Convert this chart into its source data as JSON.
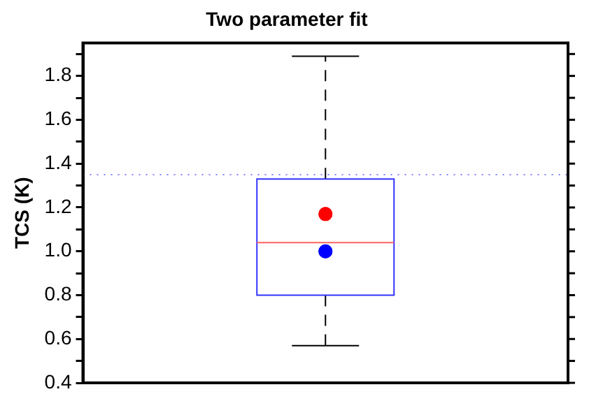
{
  "chart_data": {
    "type": "box",
    "title": "Two parameter fit",
    "ylabel": "TCS (K)",
    "categories": [
      null
    ],
    "series": [
      {
        "type": "box",
        "color": "#3333ff",
        "boxes": [
          {
            "low": 0.57,
            "q1": 0.8,
            "median": 1.04,
            "q3": 1.33,
            "high": 1.89
          }
        ]
      },
      {
        "type": "scatter",
        "color": "#ff0000",
        "values": [
          1.17
        ]
      },
      {
        "type": "scatter",
        "color": "#0000ff",
        "values": [
          1.0
        ]
      }
    ],
    "ylim": [
      0.4,
      1.95
    ],
    "yticks": [
      0.4,
      {
        "value": 0.5,
        "label": null
      },
      0.6,
      {
        "value": 0.7,
        "label": null
      },
      0.8,
      {
        "value": 0.9,
        "label": null
      },
      {
        "value": 1.0,
        "label": "1.0"
      },
      {
        "value": 1.1,
        "label": null
      },
      1.2,
      {
        "value": 1.3,
        "label": null
      },
      1.4,
      {
        "value": 1.5,
        "label": null
      },
      1.6,
      {
        "value": 1.7,
        "label": null
      },
      1.8,
      {
        "value": 1.9,
        "label": null
      }
    ],
    "ref_lines": [
      {
        "axis": "y",
        "value": 1.35,
        "color": "#8080ff",
        "line_style": "dotted"
      }
    ],
    "marker": "circle",
    "legend": false,
    "grid": false
  }
}
